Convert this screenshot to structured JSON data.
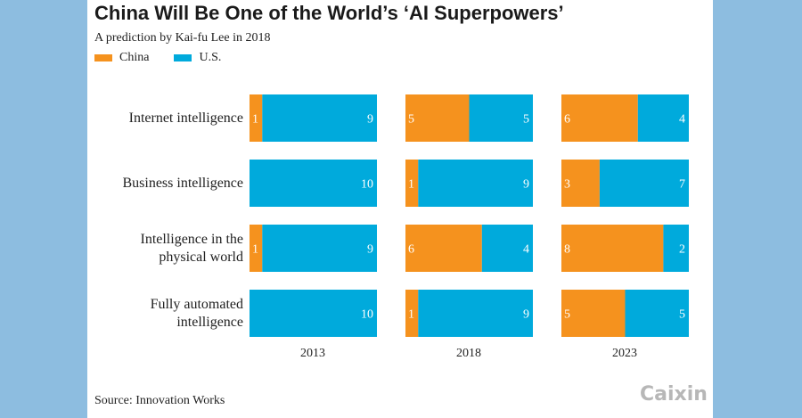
{
  "header": {
    "title": "China Will Be One of the World’s ‘AI Superpowers’",
    "subtitle": "A prediction by Kai-fu Lee in 2018"
  },
  "legend": {
    "china": "China",
    "us": "U.S."
  },
  "colors": {
    "china": "#f5921e",
    "us": "#00aadc"
  },
  "footer": {
    "source": "Source: Innovation Works",
    "logo": "Caixin"
  },
  "chart_data": {
    "type": "bar",
    "stacked": true,
    "orientation": "horizontal",
    "title": "China Will Be One of the World’s ‘AI Superpowers’",
    "subtitle": "A prediction by Kai-fu Lee in 2018",
    "categories": [
      "Internet intelligence",
      "Business intelligence",
      "Intelligence in the physical world",
      "Fully automated intelligence"
    ],
    "category_lines": [
      [
        "Internet intelligence"
      ],
      [
        "Business intelligence"
      ],
      [
        "Intelligence in the",
        "physical world"
      ],
      [
        "Fully automated",
        "intelligence"
      ]
    ],
    "panels": [
      "2013",
      "2018",
      "2023"
    ],
    "series": [
      {
        "name": "China",
        "values": [
          [
            1,
            0,
            1,
            0
          ],
          [
            5,
            1,
            6,
            1
          ],
          [
            6,
            3,
            8,
            5
          ]
        ]
      },
      {
        "name": "U.S.",
        "values": [
          [
            9,
            10,
            9,
            10
          ],
          [
            5,
            9,
            4,
            9
          ],
          [
            4,
            7,
            2,
            5
          ]
        ]
      }
    ],
    "xlim": [
      0,
      10
    ],
    "legend_position": "top-left"
  }
}
